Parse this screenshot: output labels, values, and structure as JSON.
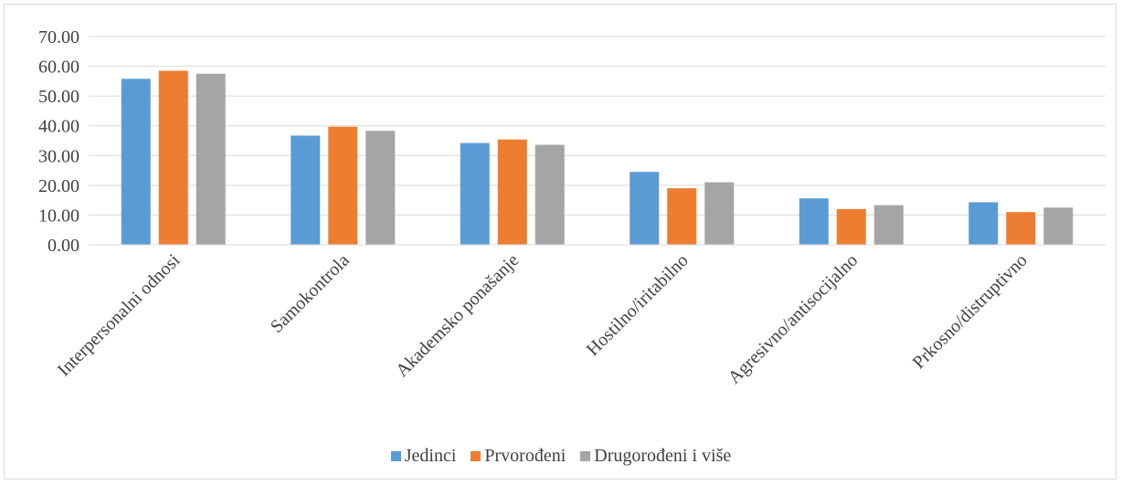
{
  "chart_data": {
    "type": "bar",
    "title": "",
    "xlabel": "",
    "ylabel": "",
    "ylim": [
      0,
      70
    ],
    "yticks": [
      "0.00",
      "10.00",
      "20.00",
      "30.00",
      "40.00",
      "50.00",
      "60.00",
      "70.00"
    ],
    "grid": true,
    "legend_position": "bottom",
    "categories": [
      "Interpersonalni odnosi",
      "Samokontrola",
      "Akademsko ponašanje",
      "Hostilno/iritabilno",
      "Agresivno/antisocijalno",
      "Prkosno/distruptivno"
    ],
    "series": [
      {
        "name": "Jedinci",
        "color": "#5b9bd5",
        "values": [
          55.8,
          36.7,
          34.2,
          24.5,
          15.6,
          14.3
        ]
      },
      {
        "name": "Prvorođeni",
        "color": "#ed7d31",
        "values": [
          58.5,
          39.7,
          35.4,
          19.0,
          12.0,
          11.0
        ]
      },
      {
        "name": "Drugorođeni i više",
        "color": "#a5a5a5",
        "values": [
          57.5,
          38.3,
          33.6,
          21.0,
          13.3,
          12.5
        ]
      }
    ]
  }
}
